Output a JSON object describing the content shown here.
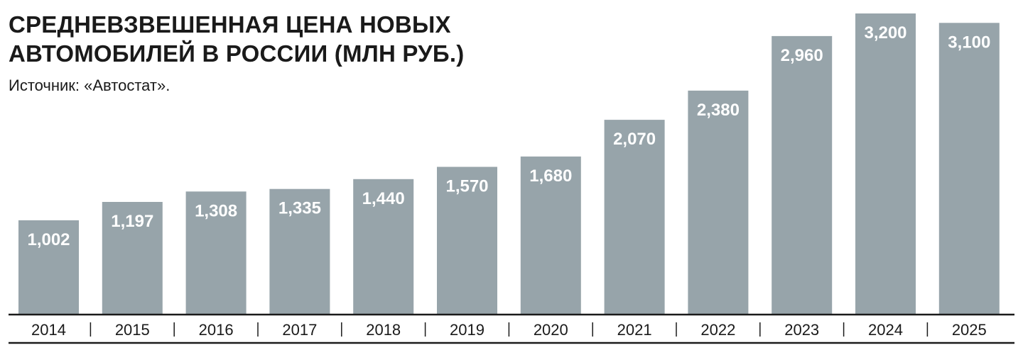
{
  "header": {
    "title_line1": "СРЕДНЕВЗВЕШЕННАЯ ЦЕНА НОВЫХ",
    "title_line2": "АВТОМОБИЛЕЙ В РОССИИ (МЛН РУБ.)",
    "source": "Источник: «Автостат»."
  },
  "colors": {
    "bar": "#97a4aa",
    "bar_label": "#ffffff",
    "text": "#1a1a1a"
  },
  "chart_data": {
    "type": "bar",
    "title": "СРЕДНЕВЗВЕШЕННАЯ ЦЕНА НОВЫХ АВТОМОБИЛЕЙ В РОССИИ (МЛН РУБ.)",
    "categories": [
      "2014",
      "2015",
      "2016",
      "2017",
      "2018",
      "2019",
      "2020",
      "2021",
      "2022",
      "2023",
      "2024",
      "2025"
    ],
    "values": [
      1.002,
      1.197,
      1.308,
      1.335,
      1.44,
      1.57,
      1.68,
      2.07,
      2.38,
      2.96,
      3.2,
      3.1
    ],
    "value_labels": [
      "1,002",
      "1,197",
      "1,308",
      "1,335",
      "1,440",
      "1,570",
      "1,680",
      "2,070",
      "2,380",
      "2,960",
      "3,200",
      "3,100"
    ],
    "xlabel": "",
    "ylabel": "",
    "ylim": [
      0,
      3.2
    ],
    "grid": false,
    "legend": "none"
  }
}
